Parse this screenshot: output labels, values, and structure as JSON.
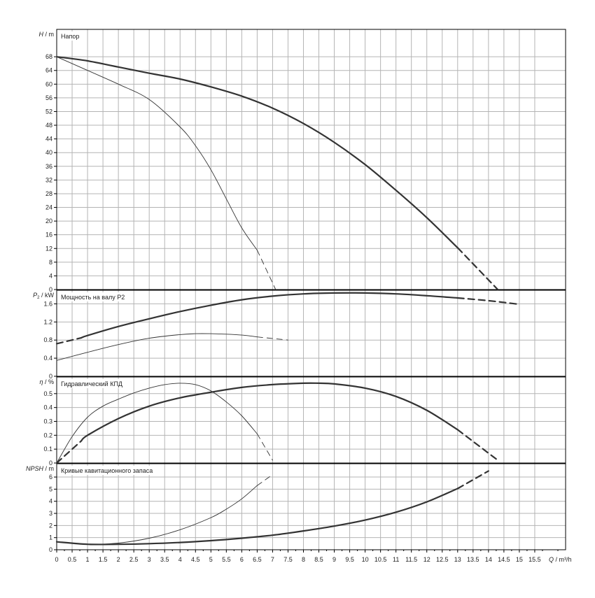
{
  "chart_data": {
    "type": "line",
    "colors": {
      "grid": "#b4b4b4",
      "frame": "#000000",
      "curve": "#333333"
    },
    "x_axis": {
      "label": "Q / m³/h",
      "range": [
        0,
        16.5
      ],
      "ticks": [
        0,
        0.5,
        1,
        1.5,
        2,
        2.5,
        3,
        3.5,
        4,
        4.5,
        5,
        5.5,
        6,
        6.5,
        7,
        7.5,
        8,
        8.5,
        9,
        9.5,
        10,
        10.5,
        11,
        11.5,
        12,
        12.5,
        13,
        13.5,
        14,
        14.5,
        15,
        15.5
      ],
      "tick_labels": [
        "0",
        "0.5",
        "1",
        "1.5",
        "2",
        "2.5",
        "3",
        "3.5",
        "4",
        "4.5",
        "5",
        "5.5",
        "6",
        "6.5",
        "7",
        "7.5",
        "8",
        "8.5",
        "9",
        "9.5",
        "10",
        "10.5",
        "11",
        "11.5",
        "12",
        "12.5",
        "13",
        "13.5",
        "14",
        "14.5",
        "15",
        "15.5"
      ]
    },
    "panels": [
      {
        "id": "head",
        "title": "Напор",
        "ylabel_sym": "H",
        "ylabel_unit": " / m",
        "ylim": [
          0,
          76
        ],
        "yticks": [
          0,
          4,
          8,
          12,
          16,
          20,
          24,
          28,
          32,
          36,
          40,
          44,
          48,
          52,
          56,
          60,
          64,
          68
        ],
        "ytick_labels": [
          "0",
          "4",
          "8",
          "12",
          "16",
          "20",
          "24",
          "28",
          "32",
          "36",
          "40",
          "44",
          "48",
          "52",
          "56",
          "60",
          "64",
          "68"
        ],
        "series": [
          {
            "width": "thick",
            "x": [
              0,
              1,
              2,
              3,
              4,
              5,
              6,
              7,
              8,
              9,
              10,
              11,
              12,
              13
            ],
            "y": [
              68,
              66.8,
              65,
              63.2,
              61.5,
              59.2,
              56.5,
              53,
              48.5,
              43,
              36.5,
              29,
              21,
              12.2
            ]
          },
          {
            "width": "thick",
            "dashed": true,
            "x": [
              13,
              14.3
            ],
            "y": [
              12.2,
              0
            ]
          },
          {
            "width": "thin",
            "x": [
              0,
              1,
              2,
              3,
              4,
              4.5,
              5,
              5.5,
              6,
              6.5
            ],
            "y": [
              68,
              64,
              60,
              55.5,
              47.5,
              42,
              35,
              26.5,
              18,
              11.5
            ]
          },
          {
            "width": "thin",
            "dashed": true,
            "x": [
              6.5,
              7.1
            ],
            "y": [
              11.5,
              0
            ]
          }
        ]
      },
      {
        "id": "power",
        "title": "Мощность на валу P2",
        "ylabel_sym": "P",
        "ylabel_sub": "2",
        "ylabel_unit": " / kW",
        "ylim": [
          0,
          1.9
        ],
        "yticks": [
          0,
          0.4,
          0.8,
          1.2,
          1.6
        ],
        "ytick_labels": [
          "0",
          "0.4",
          "0.8",
          "1.2",
          "1.6"
        ],
        "series": [
          {
            "width": "thick",
            "x": [
              0.8,
              1,
              2,
              3,
              4,
              5,
              6,
              7,
              8,
              9,
              10,
              11,
              12,
              13
            ],
            "y": [
              0.85,
              0.9,
              1.1,
              1.27,
              1.43,
              1.57,
              1.69,
              1.77,
              1.82,
              1.84,
              1.84,
              1.82,
              1.78,
              1.73
            ]
          },
          {
            "width": "thick",
            "dashed": true,
            "x": [
              13,
              14,
              15
            ],
            "y": [
              1.73,
              1.67,
              1.59
            ]
          },
          {
            "width": "thick",
            "dashed": true,
            "x": [
              0,
              0.8
            ],
            "y": [
              0.72,
              0.85
            ]
          },
          {
            "width": "thin",
            "x": [
              0,
              1,
              2,
              3,
              4,
              4.5,
              5,
              5.5,
              6,
              6.5
            ],
            "y": [
              0.35,
              0.53,
              0.7,
              0.84,
              0.92,
              0.94,
              0.94,
              0.93,
              0.91,
              0.87
            ]
          },
          {
            "width": "thin",
            "dashed": true,
            "x": [
              6.5,
              7.5
            ],
            "y": [
              0.87,
              0.8
            ]
          }
        ]
      },
      {
        "id": "eff",
        "title": "Гидравлический КПД",
        "ylabel_sym": "η",
        "ylabel_unit": " / %",
        "ylim": [
          0,
          0.62
        ],
        "yticks": [
          0,
          0.1,
          0.2,
          0.3,
          0.4,
          0.5
        ],
        "ytick_labels": [
          "0",
          "0.1",
          "0.2",
          "0.3",
          "0.4",
          "0.5"
        ],
        "series": [
          {
            "width": "thick",
            "x": [
              0.8,
              1,
              2,
              3,
              4,
              5,
              6,
              7,
              8,
              8.5,
              9,
              10,
              11,
              12,
              13
            ],
            "y": [
              0.16,
              0.2,
              0.32,
              0.41,
              0.47,
              0.51,
              0.545,
              0.565,
              0.575,
              0.575,
              0.57,
              0.54,
              0.48,
              0.38,
              0.24
            ]
          },
          {
            "width": "thick",
            "dashed": true,
            "x": [
              13,
              14.3
            ],
            "y": [
              0.24,
              0.02
            ]
          },
          {
            "width": "thick",
            "dashed": true,
            "x": [
              0,
              0.8
            ],
            "y": [
              0,
              0.16
            ]
          },
          {
            "width": "thin",
            "x": [
              0,
              0.5,
              1,
              1.5,
              2,
              2.5,
              3,
              3.5,
              4,
              4.5,
              5,
              5.5,
              6,
              6.5
            ],
            "y": [
              0,
              0.19,
              0.33,
              0.41,
              0.46,
              0.505,
              0.54,
              0.565,
              0.575,
              0.565,
              0.52,
              0.44,
              0.34,
              0.21
            ]
          },
          {
            "width": "thin",
            "dashed": true,
            "x": [
              6.5,
              7
            ],
            "y": [
              0.21,
              0.02
            ]
          }
        ]
      },
      {
        "id": "npsh",
        "title": "Кривые кавитационного запаса",
        "ylabel_sym": "NPSH",
        "ylabel_unit": " / m",
        "ylim": [
          0,
          7.1
        ],
        "yticks": [
          0,
          1,
          2,
          3,
          4,
          5,
          6
        ],
        "ytick_labels": [
          "0",
          "1",
          "2",
          "3",
          "4",
          "5",
          "6"
        ],
        "series": [
          {
            "width": "thick",
            "x": [
              0,
              1,
              2,
              3,
              4,
              5,
              6,
              7,
              8,
              9,
              10,
              11,
              12,
              13
            ],
            "y": [
              0.65,
              0.45,
              0.45,
              0.5,
              0.6,
              0.75,
              0.95,
              1.2,
              1.55,
              1.95,
              2.45,
              3.1,
              3.95,
              5.05
            ]
          },
          {
            "width": "thick",
            "dashed": true,
            "x": [
              13,
              14
            ],
            "y": [
              5.05,
              6.5
            ]
          },
          {
            "width": "thin",
            "x": [
              0,
              1,
              2,
              3,
              4,
              5,
              5.5,
              6,
              6.5
            ],
            "y": [
              0.65,
              0.45,
              0.55,
              0.95,
              1.65,
              2.65,
              3.35,
              4.2,
              5.3
            ]
          },
          {
            "width": "thin",
            "dashed": true,
            "x": [
              6.5,
              7
            ],
            "y": [
              5.3,
              6.2
            ]
          }
        ]
      }
    ]
  }
}
